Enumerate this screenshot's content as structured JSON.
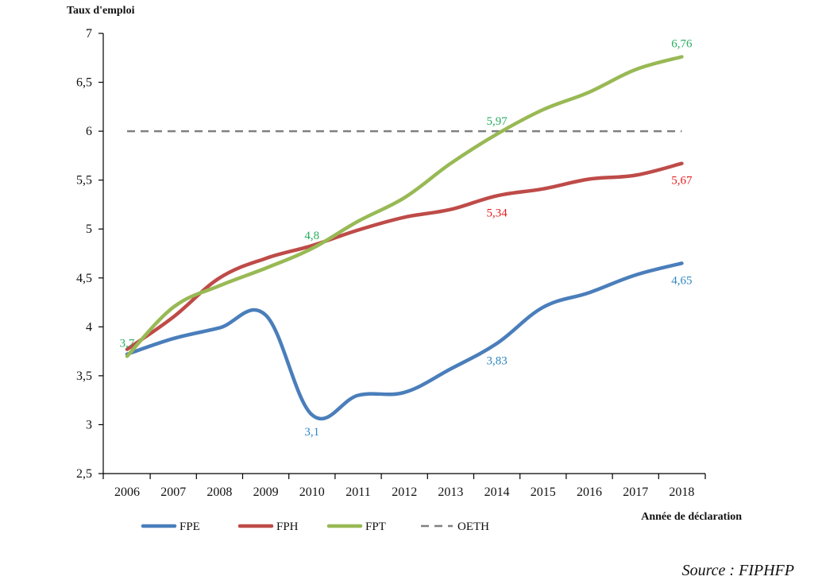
{
  "chart_data": {
    "type": "line",
    "ylabel": "Taux d'emploi",
    "xlabel": "Année de déclaration",
    "ylim": [
      2.5,
      7
    ],
    "yticks": [
      "2,5",
      "3",
      "3,5",
      "4",
      "4,5",
      "5",
      "5,5",
      "6",
      "6,5",
      "7"
    ],
    "ytick_values": [
      2.5,
      3,
      3.5,
      4,
      4.5,
      5,
      5.5,
      6,
      6.5,
      7
    ],
    "categories": [
      "2006",
      "2007",
      "2008",
      "2009",
      "2010",
      "2011",
      "2012",
      "2013",
      "2014",
      "2015",
      "2016",
      "2017",
      "2018"
    ],
    "series": [
      {
        "name": "FPE",
        "color": "#4a7ebb",
        "label_color": "#2e86c1",
        "values": [
          3.72,
          3.88,
          3.99,
          4.12,
          3.1,
          3.3,
          3.33,
          3.57,
          3.83,
          4.2,
          4.35,
          4.53,
          4.65
        ],
        "labels": [
          {
            "index": 4,
            "text": "3,1",
            "pos": "below"
          },
          {
            "index": 8,
            "text": "3,83",
            "pos": "below"
          },
          {
            "index": 12,
            "text": "4,65",
            "pos": "below"
          }
        ]
      },
      {
        "name": "FPH",
        "color": "#be4b48",
        "label_color": "#e31c1c",
        "values": [
          3.77,
          4.1,
          4.5,
          4.7,
          4.83,
          4.99,
          5.12,
          5.2,
          5.34,
          5.41,
          5.51,
          5.55,
          5.67
        ],
        "labels": [
          {
            "index": 8,
            "text": "5,34",
            "pos": "below"
          },
          {
            "index": 12,
            "text": "5,67",
            "pos": "below"
          }
        ]
      },
      {
        "name": "FPT",
        "color": "#98b954",
        "label_color": "#27ae60",
        "values": [
          3.7,
          4.2,
          4.42,
          4.6,
          4.8,
          5.08,
          5.32,
          5.67,
          5.97,
          6.22,
          6.4,
          6.63,
          6.76
        ],
        "labels": [
          {
            "index": 0,
            "text": "3,7",
            "pos": "above"
          },
          {
            "index": 4,
            "text": "4,8",
            "pos": "above"
          },
          {
            "index": 8,
            "text": "5,97",
            "pos": "above"
          },
          {
            "index": 12,
            "text": "6,76",
            "pos": "above"
          }
        ]
      },
      {
        "name": "OETH",
        "color": "#808080",
        "dashed": true,
        "values": [
          6,
          6,
          6,
          6,
          6,
          6,
          6,
          6,
          6,
          6,
          6,
          6,
          6
        ]
      }
    ],
    "legend": [
      "FPE",
      "FPH",
      "FPT",
      "OETH"
    ],
    "legend_position": "bottom"
  },
  "source": "Source : FIPHFP"
}
